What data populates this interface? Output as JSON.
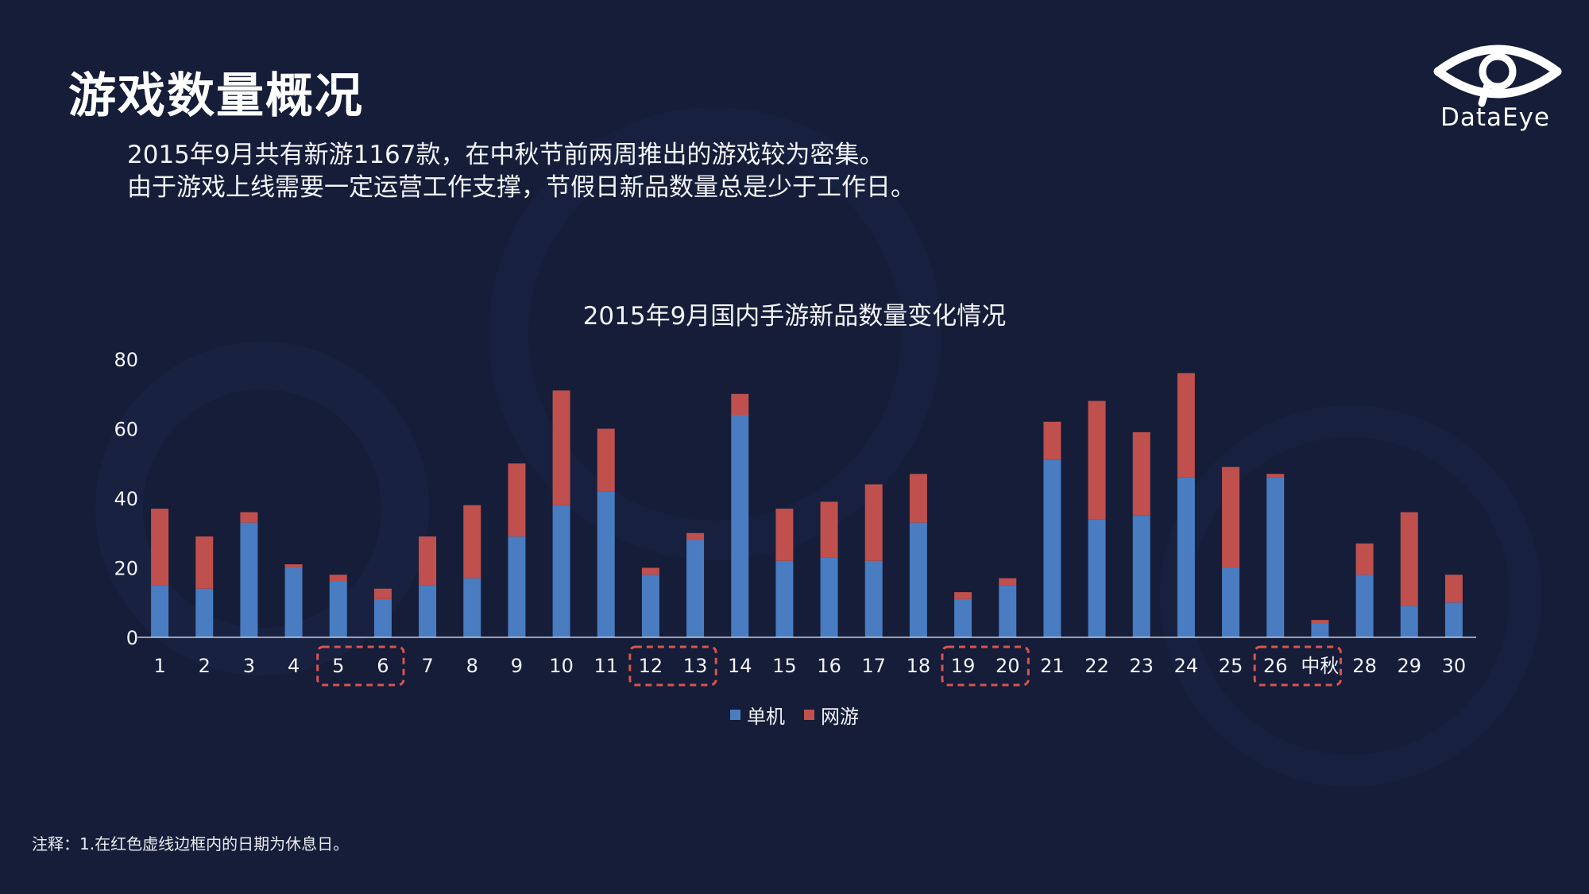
{
  "page": {
    "title": "游戏数量概况",
    "subtitle_lines": [
      "2015年9月共有新游1167款，在中秋节前两周推出的游戏较为密集。",
      "由于游戏上线需要一定运营工作支撑，节假日新品数量总是少于工作日。"
    ],
    "logo_text": "DataEye",
    "footnote": "注释：1.在红色虚线边框内的日期为休息日。"
  },
  "colors": {
    "background": "#151d38",
    "single_player": "#4a7cc1",
    "online": "#c0504d",
    "holiday_box": "#d9534f",
    "axis": "#c8ccd8"
  },
  "chart_data": {
    "type": "bar",
    "stacked": true,
    "title": "2015年9月国内手游新品数量变化情况",
    "categories": [
      "1",
      "2",
      "3",
      "4",
      "5",
      "6",
      "7",
      "8",
      "9",
      "10",
      "11",
      "12",
      "13",
      "14",
      "15",
      "16",
      "17",
      "18",
      "19",
      "20",
      "21",
      "22",
      "23",
      "24",
      "25",
      "26",
      "中秋",
      "28",
      "29",
      "30"
    ],
    "series": [
      {
        "name": "单机",
        "color": "#4a7cc1",
        "values": [
          15,
          14,
          33,
          20,
          16,
          11,
          15,
          17,
          29,
          38,
          42,
          18,
          28,
          64,
          22,
          23,
          22,
          33,
          11,
          15,
          51,
          34,
          35,
          46,
          20,
          46,
          4,
          18,
          9,
          10
        ]
      },
      {
        "name": "网游",
        "color": "#c0504d",
        "values": [
          22,
          15,
          3,
          1,
          2,
          3,
          14,
          21,
          21,
          33,
          18,
          2,
          2,
          6,
          15,
          16,
          22,
          14,
          2,
          2,
          11,
          34,
          24,
          30,
          29,
          1,
          1,
          9,
          27,
          8
        ]
      }
    ],
    "ylim": [
      0,
      80
    ],
    "yticks": [
      0,
      20,
      40,
      60,
      80
    ],
    "grid": false,
    "legend_position": "bottom",
    "holiday_groups": [
      [
        "5",
        "6"
      ],
      [
        "12",
        "13"
      ],
      [
        "19",
        "20"
      ],
      [
        "26",
        "中秋"
      ]
    ]
  }
}
